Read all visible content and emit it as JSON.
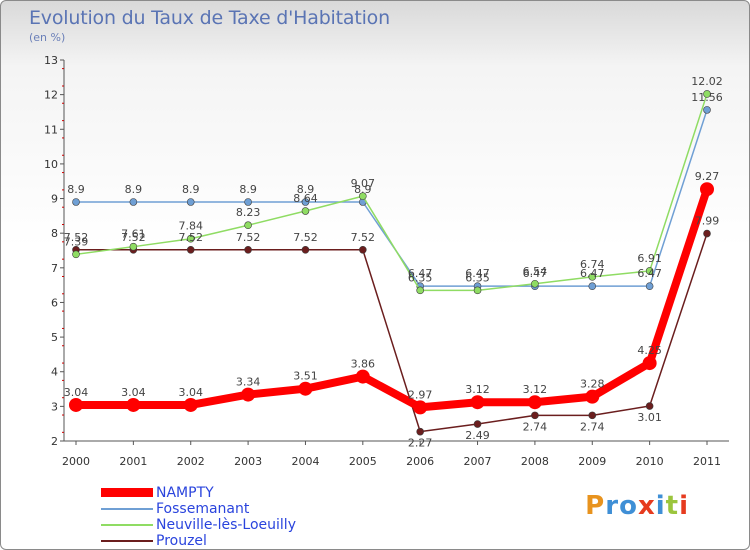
{
  "title": "Evolution du Taux de Taxe d'Habitation",
  "subtitle": "(en %)",
  "logo": {
    "text": "Proxiti",
    "colors": [
      "#e8931e",
      "#3f8fd6",
      "#3f8fd6",
      "#e63b1f",
      "#3f8fd6",
      "#9bc53d",
      "#e63b1f"
    ]
  },
  "chart_data": {
    "type": "line",
    "x": [
      "2000",
      "2001",
      "2002",
      "2003",
      "2004",
      "2005",
      "2006",
      "2007",
      "2008",
      "2009",
      "2010",
      "2011"
    ],
    "ylim": [
      2,
      13
    ],
    "yticks": [
      2,
      3,
      4,
      5,
      6,
      7,
      8,
      9,
      10,
      11,
      12,
      13
    ],
    "grid": false,
    "legend": "bottom-left",
    "series": [
      {
        "name": "NAMPTY",
        "color": "#ff0000",
        "values": [
          3.04,
          3.04,
          3.04,
          3.34,
          3.51,
          3.86,
          2.97,
          3.12,
          3.12,
          3.28,
          4.25,
          9.27
        ],
        "labels": [
          "3.04",
          "3.04",
          "3.04",
          "3.34",
          "3.51",
          "3.86",
          "2.97",
          "3.12",
          "3.12",
          "3.28",
          "4.25",
          "9.27"
        ]
      },
      {
        "name": "Fossemanant",
        "color": "#6f9fd4",
        "values": [
          8.9,
          8.9,
          8.9,
          8.9,
          8.9,
          8.9,
          6.47,
          6.47,
          6.47,
          6.47,
          6.47,
          11.56
        ],
        "labels": [
          "8.9",
          "8.9",
          "8.9",
          "8.9",
          "8.9",
          "8.9",
          "6.47",
          "6.47",
          "6.47",
          "6.47",
          "6.47",
          "11.56"
        ]
      },
      {
        "name": "Neuville-lès-Loeuilly",
        "color": "#8fdc63",
        "values": [
          7.39,
          7.61,
          7.84,
          8.23,
          8.64,
          9.07,
          6.35,
          6.35,
          6.54,
          6.74,
          6.91,
          12.02
        ],
        "labels": [
          "7.39",
          "7.61",
          "7.84",
          "8.23",
          "8.64",
          "9.07",
          "6.35",
          "6.35",
          "6.54",
          "6.74",
          "6.91",
          "12.02"
        ]
      },
      {
        "name": "Prouzel",
        "color": "#6b1e1e",
        "values": [
          7.52,
          7.52,
          7.52,
          7.52,
          7.52,
          7.52,
          2.27,
          2.49,
          2.74,
          2.74,
          3.01,
          7.99
        ],
        "labels": [
          "7.52",
          "7.52",
          "7.52",
          "7.52",
          "7.52",
          "7.52",
          "2.27",
          "2.49",
          "2.74",
          "2.74",
          "3.01",
          "7.99"
        ]
      }
    ]
  }
}
